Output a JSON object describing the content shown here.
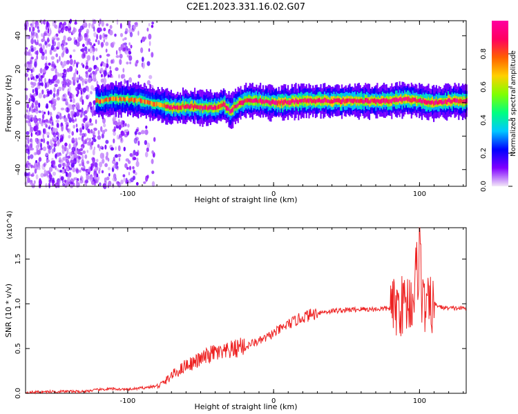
{
  "title": "C2E1.2023.331.16.02.G07",
  "chart_data": [
    {
      "type": "heatmap",
      "xlabel": "Height of straight line (km)",
      "ylabel": "Frequency (Hz)",
      "xlim": [
        -170,
        132
      ],
      "ylim": [
        -50,
        49
      ],
      "x_ticks": [
        -100,
        0,
        100
      ],
      "y_ticks": [
        -40,
        -20,
        0,
        20,
        40
      ],
      "colorbar": {
        "label": "Normalized spectral amplitude",
        "range": [
          0,
          1
        ],
        "ticks": [
          "0.0",
          "0.2",
          "0.4",
          "0.6",
          "0.8"
        ],
        "colormap": [
          "#f3e8f8",
          "#8000ff",
          "#0000ff",
          "#00c8ff",
          "#00ff80",
          "#80ff00",
          "#ffd000",
          "#ff6000",
          "#ff0060",
          "#ff00a0"
        ]
      },
      "tone_track": {
        "x": [
          -120,
          -110,
          -100,
          -90,
          -80,
          -70,
          -60,
          -50,
          -40,
          -35,
          -30,
          -25,
          -20,
          -10,
          0,
          20,
          40,
          60,
          80,
          90,
          100,
          110,
          120,
          132
        ],
        "frequency": [
          1,
          2,
          2,
          1,
          -1,
          -3,
          -2,
          -3,
          -3,
          -1,
          -5,
          -1,
          1,
          1,
          0,
          1,
          1,
          1,
          1,
          2,
          1,
          0,
          1,
          1
        ]
      },
      "noise_region_x": [
        -170,
        -80
      ]
    },
    {
      "type": "line",
      "xlabel": "Height of straight line (km)",
      "ylabel": "SNR (10 * v/v)",
      "y_multiplier": "(x10^4)",
      "xlim": [
        -170,
        132
      ],
      "ylim": [
        0,
        1.85
      ],
      "x_ticks": [
        -100,
        0,
        100
      ],
      "y_ticks": [
        0,
        0.5,
        1.0,
        1.5
      ],
      "y_tick_labels": [
        "0.0",
        "0.5",
        "1.0",
        "1.5"
      ],
      "grid": false,
      "series": [
        {
          "color": "#ee2222",
          "x": [
            -170,
            -150,
            -130,
            -120,
            -110,
            -100,
            -90,
            -80,
            -75,
            -70,
            -65,
            -60,
            -55,
            -50,
            -45,
            -40,
            -35,
            -30,
            -25,
            -22,
            -20,
            -15,
            -10,
            -5,
            0,
            10,
            20,
            30,
            40,
            50,
            60,
            70,
            80,
            85,
            90,
            95,
            98,
            100,
            102,
            105,
            110,
            115,
            120,
            125,
            132
          ],
          "values": [
            0.01,
            0.02,
            0.02,
            0.04,
            0.05,
            0.04,
            0.06,
            0.08,
            0.12,
            0.2,
            0.25,
            0.32,
            0.34,
            0.38,
            0.42,
            0.46,
            0.44,
            0.48,
            0.5,
            0.55,
            0.5,
            0.56,
            0.58,
            0.62,
            0.67,
            0.77,
            0.85,
            0.9,
            0.92,
            0.93,
            0.94,
            0.94,
            0.95,
            0.96,
            1.0,
            1.05,
            1.3,
            1.8,
            1.0,
            0.95,
            1.0,
            0.96,
            0.95,
            0.95,
            0.95
          ]
        }
      ]
    }
  ]
}
